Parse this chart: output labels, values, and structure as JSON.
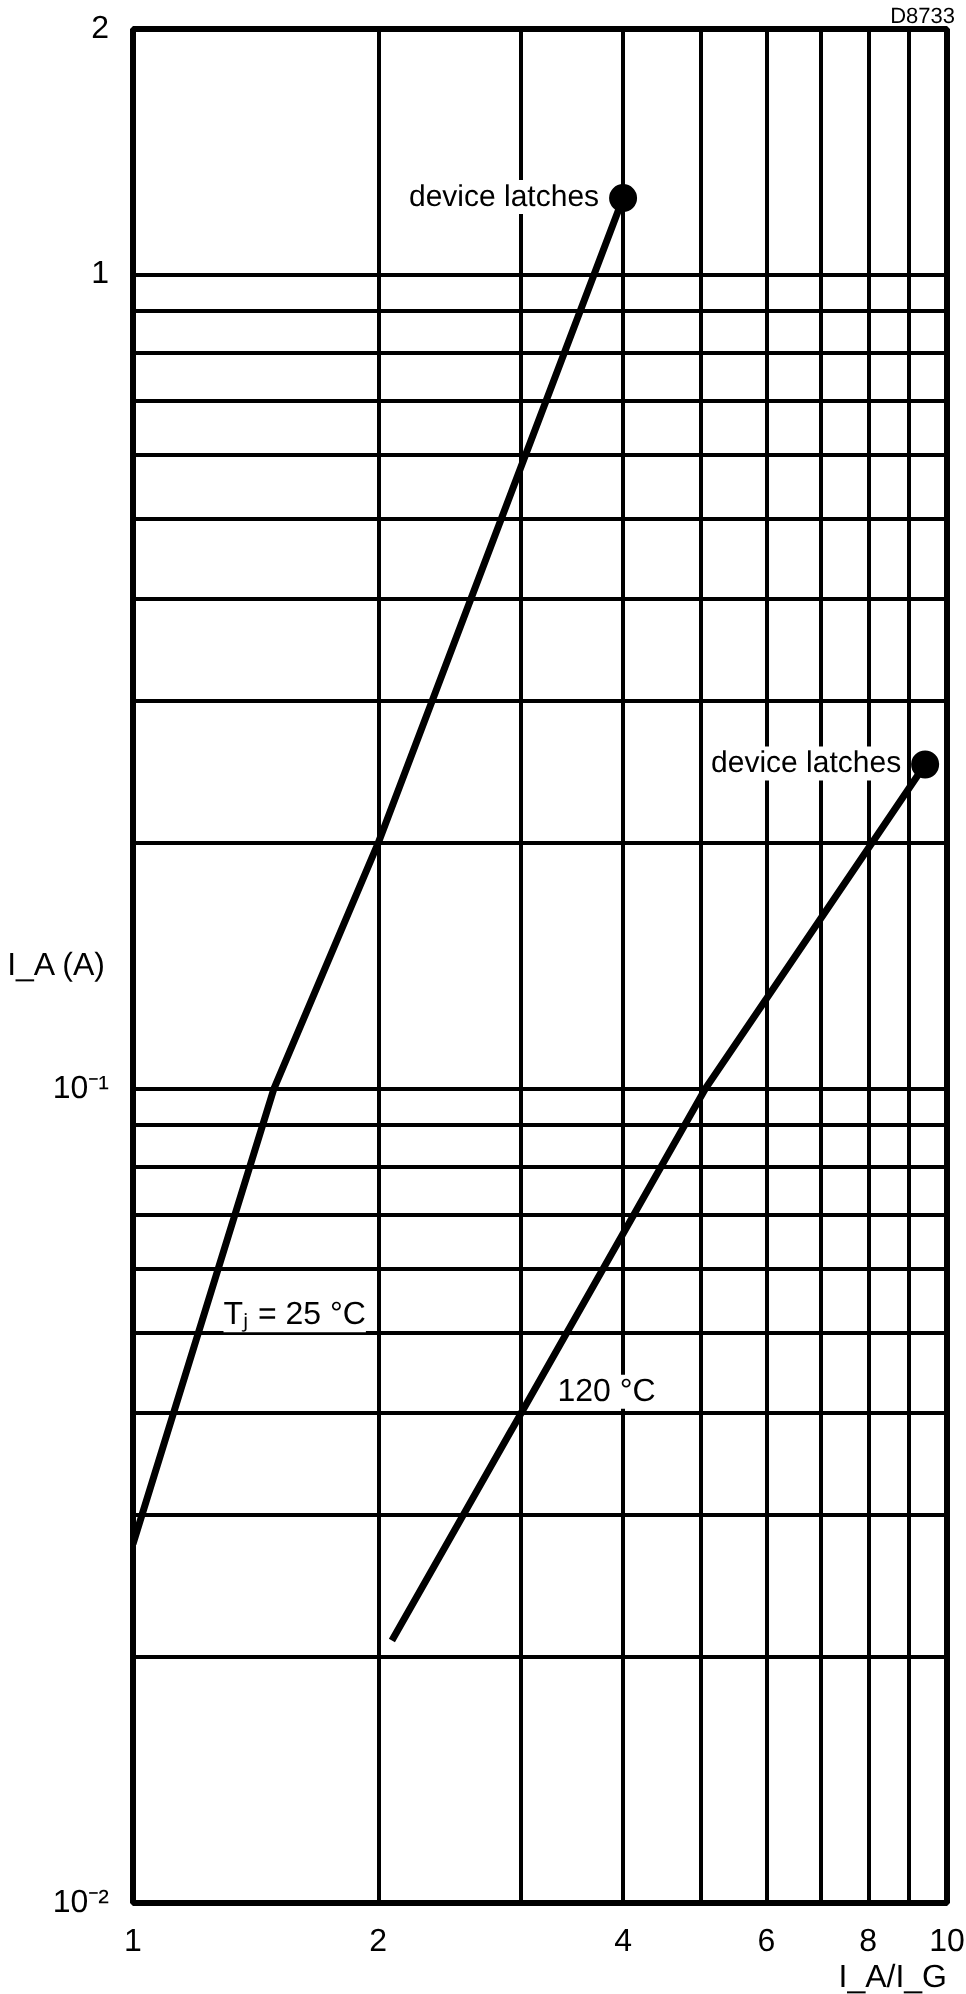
{
  "chart_data": {
    "type": "line",
    "xlabel": "I_A/I_G",
    "ylabel": "I_A (A)",
    "log": "xy",
    "grid": true,
    "line_style": "solid",
    "marker": "none",
    "xlim": [
      1,
      10
    ],
    "ylim": [
      0.01,
      2
    ],
    "xticks": [
      1,
      2,
      {
        "value": 3,
        "label": null
      },
      4,
      {
        "value": 5,
        "label": null
      },
      6,
      {
        "value": 7,
        "label": null
      },
      8,
      {
        "value": 9,
        "label": null
      },
      10
    ],
    "yticks": [
      {
        "value": 0.01,
        "label": "10⁻²"
      },
      {
        "value": 0.02,
        "label": null
      },
      {
        "value": 0.03,
        "label": null
      },
      {
        "value": 0.04,
        "label": null
      },
      {
        "value": 0.05,
        "label": null
      },
      {
        "value": 0.06,
        "label": null
      },
      {
        "value": 0.07,
        "label": null
      },
      {
        "value": 0.08,
        "label": null
      },
      {
        "value": 0.09,
        "label": null
      },
      {
        "value": 0.1,
        "label": "10⁻¹"
      },
      {
        "value": 0.2,
        "label": null
      },
      {
        "value": 0.3,
        "label": null
      },
      {
        "value": 0.4,
        "label": null
      },
      {
        "value": 0.5,
        "label": null
      },
      {
        "value": 0.6,
        "label": null
      },
      {
        "value": 0.7,
        "label": null
      },
      {
        "value": 0.8,
        "label": null
      },
      {
        "value": 0.9,
        "label": null
      },
      1,
      2
    ],
    "series": [
      {
        "name": "Tⱼ = 25 °C",
        "color": "#000000",
        "x": [
          1,
          1.49,
          2,
          4
        ],
        "values": [
          0.0276,
          0.1,
          0.2,
          1.24
        ]
      },
      {
        "name": "120 °C",
        "color": "#000000",
        "x": [
          2.08,
          3,
          5.05,
          9.4
        ],
        "values": [
          0.021,
          0.04,
          0.1,
          0.25
        ]
      }
    ],
    "annotations": [
      {
        "text": "device latches",
        "x": 4,
        "y": 1.24
      },
      {
        "text": "device latches",
        "x": 9.4,
        "y": 0.25
      },
      "D8733"
    ]
  }
}
